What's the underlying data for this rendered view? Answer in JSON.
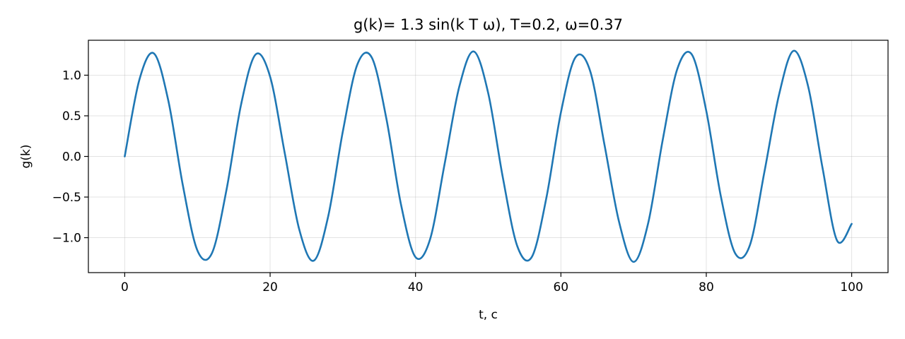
{
  "chart_data": {
    "type": "line",
    "title": "g(k)= 1.3 sin(k T ω), T=0.2, ω=0.37",
    "xlabel": "t, c",
    "ylabel": "g(k)",
    "xlim": [
      -5,
      105
    ],
    "ylim": [
      -1.43,
      1.43
    ],
    "xticks": [
      0,
      20,
      40,
      60,
      80,
      100
    ],
    "xtick_labels": [
      "0",
      "20",
      "40",
      "60",
      "80",
      "100"
    ],
    "yticks": [
      -1.0,
      -0.5,
      0.0,
      0.5,
      1.0
    ],
    "ytick_labels": [
      "−1.0",
      "−0.5",
      "0.0",
      "0.5",
      "1.0"
    ],
    "grid": true,
    "series": [
      {
        "color": "#1f77b4",
        "x": [
          0,
          2,
          4,
          6,
          8,
          10,
          12,
          14,
          16,
          18,
          20,
          22,
          24,
          26,
          28,
          30,
          32,
          34,
          36,
          38,
          40,
          42,
          44,
          46,
          48,
          50,
          52,
          54,
          56,
          58,
          60,
          62,
          64,
          66,
          68,
          70,
          72,
          74,
          76,
          78,
          80,
          82,
          84,
          86,
          88,
          90,
          92,
          94,
          96,
          98,
          100
        ],
        "y": [
          0.0,
          0.939,
          1.269,
          0.685,
          -0.358,
          -1.158,
          -1.19,
          -0.411,
          0.637,
          1.255,
          0.981,
          0.047,
          -0.896,
          -1.283,
          -0.733,
          0.306,
          1.132,
          1.215,
          0.462,
          -0.59,
          -1.239,
          -1.02,
          -0.094,
          0.851,
          1.292,
          0.779,
          -0.253,
          -1.104,
          -1.237,
          -0.511,
          0.541,
          1.219,
          1.058,
          0.141,
          -0.805,
          -1.298,
          -0.823,
          0.2,
          1.073,
          1.256,
          0.56,
          -0.49,
          -1.197,
          -1.092,
          -0.188,
          0.757,
          1.3,
          0.866,
          -0.146,
          -1.038,
          -0.83
        ]
      }
    ]
  }
}
